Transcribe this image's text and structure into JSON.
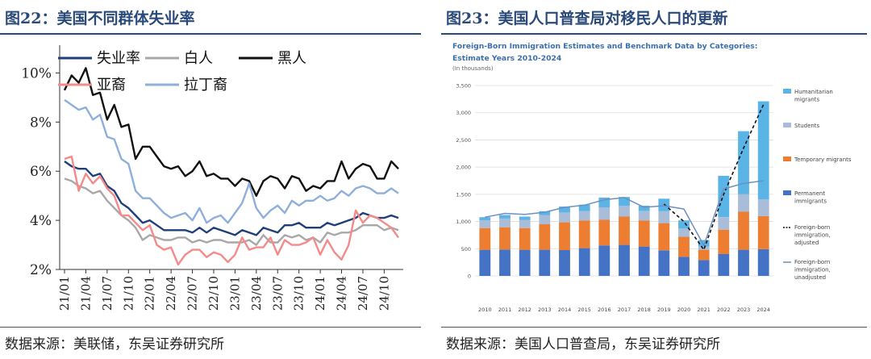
{
  "left_panel": {
    "title": "图22：美国不同群体失业率",
    "source": "数据来源：美联储，东吴证券研究所"
  },
  "right_panel": {
    "title": "图23：美国人口普查局对移民人口的更新",
    "source": "数据来源：美国人口普查局，东吴证券研究所"
  },
  "chart_data": [
    {
      "type": "line",
      "title": "",
      "xlabel": "",
      "ylabel": "",
      "ylim": [
        2,
        11
      ],
      "yticks": [
        2,
        4,
        6,
        8,
        10
      ],
      "ytick_labels": [
        "2%",
        "4%",
        "6%",
        "8%",
        "10%"
      ],
      "xtick_labels": [
        "21/01",
        "21/04",
        "21/07",
        "21/10",
        "22/01",
        "22/04",
        "22/07",
        "22/10",
        "23/01",
        "23/04",
        "23/07",
        "23/10",
        "24/01",
        "24/04",
        "24/07",
        "24/10"
      ],
      "x_start": "2021-01",
      "grid": false,
      "legend": "top",
      "series": [
        {
          "name": "失业率",
          "color": "#1f3f78",
          "values": [
            6.4,
            6.2,
            6.1,
            6.1,
            5.8,
            5.9,
            5.4,
            5.2,
            4.7,
            4.5,
            4.2,
            3.9,
            4.0,
            3.8,
            3.6,
            3.6,
            3.6,
            3.6,
            3.5,
            3.7,
            3.5,
            3.7,
            3.6,
            3.5,
            3.4,
            3.6,
            3.5,
            3.4,
            3.7,
            3.6,
            3.5,
            3.8,
            3.8,
            3.9,
            3.7,
            3.7,
            3.7,
            3.9,
            3.8,
            3.9,
            4.0,
            4.1,
            4.3,
            4.2,
            4.1,
            4.1,
            4.2,
            4.1
          ]
        },
        {
          "name": "白人",
          "color": "#a8a8a8",
          "values": [
            5.7,
            5.6,
            5.4,
            5.3,
            5.1,
            5.2,
            4.8,
            4.5,
            4.2,
            4.0,
            3.7,
            3.2,
            3.4,
            3.3,
            3.2,
            3.2,
            3.3,
            3.3,
            3.1,
            3.2,
            3.1,
            3.2,
            3.2,
            3.1,
            3.1,
            3.1,
            3.2,
            3.0,
            3.4,
            3.1,
            3.1,
            3.4,
            3.3,
            3.4,
            3.2,
            3.3,
            3.1,
            3.5,
            3.4,
            3.5,
            3.5,
            3.6,
            3.8,
            3.8,
            3.8,
            3.6,
            3.7,
            3.6
          ]
        },
        {
          "name": "黑人",
          "color": "#111111",
          "values": [
            9.3,
            9.9,
            9.6,
            10.2,
            9.1,
            9.2,
            8.1,
            8.7,
            7.8,
            7.9,
            6.5,
            7.0,
            7.0,
            6.6,
            6.2,
            6.1,
            6.2,
            5.8,
            6.0,
            6.4,
            5.8,
            5.9,
            5.7,
            5.7,
            5.4,
            5.7,
            5.6,
            5.0,
            5.6,
            5.8,
            5.7,
            5.3,
            5.8,
            5.7,
            5.2,
            5.4,
            5.3,
            5.6,
            5.6,
            6.4,
            5.7,
            6.1,
            6.3,
            6.2,
            5.7,
            5.7,
            6.4,
            6.1
          ]
        },
        {
          "name": "亚裔",
          "color": "#f48a8a",
          "values": [
            6.5,
            6.6,
            5.2,
            5.9,
            5.5,
            5.8,
            5.3,
            5.0,
            4.2,
            4.2,
            3.9,
            3.6,
            3.8,
            3.0,
            2.8,
            2.9,
            2.2,
            2.6,
            2.8,
            2.8,
            2.5,
            2.7,
            2.6,
            2.3,
            2.6,
            3.3,
            2.8,
            2.9,
            2.9,
            3.3,
            2.6,
            3.2,
            3.0,
            3.0,
            3.1,
            3.3,
            2.6,
            3.2,
            2.7,
            2.4,
            3.0,
            4.4,
            3.9,
            4.2,
            4.1,
            3.9,
            3.7,
            3.3
          ]
        },
        {
          "name": "拉丁裔",
          "color": "#8fafdb",
          "values": [
            8.9,
            8.7,
            8.5,
            8.6,
            8.1,
            8.3,
            7.4,
            7.3,
            6.5,
            6.3,
            5.2,
            4.9,
            4.9,
            4.6,
            4.3,
            4.1,
            4.2,
            4.3,
            4.0,
            4.5,
            3.9,
            4.1,
            4.2,
            3.9,
            4.3,
            4.7,
            5.5,
            4.5,
            4.1,
            4.4,
            4.6,
            4.3,
            4.8,
            4.6,
            4.8,
            4.8,
            5.0,
            4.8,
            4.9,
            5.2,
            5.0,
            5.3,
            5.4,
            5.3,
            5.1,
            5.1,
            5.3,
            5.1
          ]
        }
      ]
    },
    {
      "type": "bar",
      "stacked": true,
      "title": "Foreign-Born Immigration Estimates and Benchmark Data by Categories: Estimate Years 2010-2024",
      "subtitle": "(In thousands)",
      "xlabel": "",
      "ylabel": "",
      "ylim": [
        0,
        3500
      ],
      "yticks": [
        0,
        500,
        1000,
        1500,
        2000,
        2500,
        3000,
        3500
      ],
      "ytick_labels": [
        "0",
        "500",
        "1,000",
        "1,500",
        "2,000",
        "2,500",
        "3,000",
        "3,500"
      ],
      "categories": [
        "2010",
        "2011",
        "2012",
        "2013",
        "2014",
        "2015",
        "2016",
        "2017",
        "2018",
        "2019",
        "2020",
        "2021",
        "2022",
        "2023",
        "2024"
      ],
      "grid": true,
      "legend": "right",
      "series": [
        {
          "name": "Permanent immigrants",
          "color": "#4472c4",
          "values": [
            480,
            485,
            480,
            480,
            475,
            510,
            560,
            570,
            540,
            470,
            350,
            290,
            400,
            480,
            490
          ]
        },
        {
          "name": "Temporary migrants",
          "color": "#ed7d31",
          "values": [
            400,
            410,
            400,
            470,
            510,
            510,
            470,
            520,
            480,
            500,
            370,
            190,
            450,
            700,
            610
          ]
        },
        {
          "name": "Students",
          "color": "#a9bcd8",
          "values": [
            140,
            160,
            150,
            170,
            180,
            170,
            230,
            200,
            170,
            220,
            150,
            60,
            230,
            320,
            310
          ]
        },
        {
          "name": "Humanitarian migrants",
          "color": "#5ab4e6",
          "values": [
            60,
            65,
            60,
            70,
            110,
            120,
            180,
            160,
            100,
            230,
            150,
            120,
            760,
            1160,
            1800
          ]
        }
      ],
      "lines": [
        {
          "name": "Foreign-born immigration, adjusted",
          "color": "#111111",
          "dash": true,
          "values": [
            null,
            null,
            null,
            null,
            null,
            null,
            null,
            null,
            null,
            1320,
            1000,
            480,
            1500,
            2350,
            3150
          ]
        },
        {
          "name": "Foreign-born immigration, unadjusted",
          "color": "#6f8fbf",
          "dash": false,
          "values": [
            1080,
            1150,
            1130,
            1170,
            1260,
            1300,
            1400,
            1440,
            1260,
            1290,
            1230,
            560,
            1600,
            1700,
            1750
          ]
        }
      ]
    }
  ]
}
